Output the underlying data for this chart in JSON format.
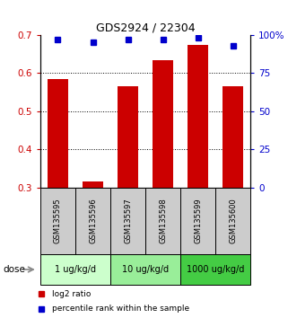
{
  "title": "GDS2924 / 22304",
  "samples": [
    "GSM135595",
    "GSM135596",
    "GSM135597",
    "GSM135598",
    "GSM135599",
    "GSM135600"
  ],
  "log2_ratio": [
    0.585,
    0.315,
    0.565,
    0.635,
    0.675,
    0.565
  ],
  "percentile_rank": [
    97,
    95,
    97,
    97,
    98,
    93
  ],
  "ylim_left": [
    0.3,
    0.7
  ],
  "ylim_right": [
    0,
    100
  ],
  "yticks_left": [
    0.3,
    0.4,
    0.5,
    0.6,
    0.7
  ],
  "yticks_right": [
    0,
    25,
    50,
    75,
    100
  ],
  "ytick_labels_right": [
    "0",
    "25",
    "50",
    "75",
    "100%"
  ],
  "bar_color": "#cc0000",
  "dot_color": "#0000cc",
  "bar_width": 0.6,
  "groups": [
    {
      "label": "1 ug/kg/d",
      "indices": [
        0,
        1
      ],
      "color": "#ccffcc"
    },
    {
      "label": "10 ug/kg/d",
      "indices": [
        2,
        3
      ],
      "color": "#99ee99"
    },
    {
      "label": "1000 ug/kg/d",
      "indices": [
        4,
        5
      ],
      "color": "#44cc44"
    }
  ],
  "dose_label": "dose",
  "legend_items": [
    {
      "label": "log2 ratio",
      "color": "#cc0000"
    },
    {
      "label": "percentile rank within the sample",
      "color": "#0000cc"
    }
  ],
  "sample_bg_color": "#cccccc",
  "grid_yticks": [
    0.4,
    0.5,
    0.6
  ]
}
